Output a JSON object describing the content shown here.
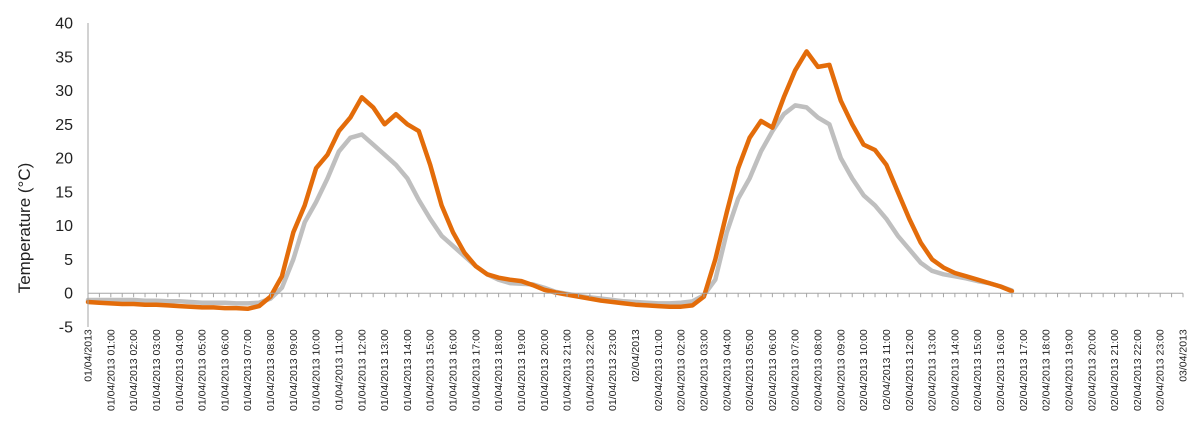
{
  "chart_data": {
    "type": "line",
    "title": "",
    "xlabel": "",
    "ylabel": "Temperature (°C)",
    "ylim": [
      -5,
      40
    ],
    "yticks": [
      -5,
      0,
      5,
      10,
      15,
      20,
      25,
      30,
      35,
      40
    ],
    "grid": false,
    "legend": "none",
    "x_step_hours": 0.5,
    "x_tick_labels": [
      "01/04/2013",
      "01/04/2013 01:00",
      "01/04/2013 02:00",
      "01/04/2013 03:00",
      "01/04/2013 04:00",
      "01/04/2013 05:00",
      "01/04/2013 06:00",
      "01/04/2013 07:00",
      "01/04/2013 08:00",
      "01/04/2013 09:00",
      "01/04/2013 10:00",
      "01/04/2013 11:00",
      "01/04/2013 12:00",
      "01/04/2013 13:00",
      "01/04/2013 14:00",
      "01/04/2013 15:00",
      "01/04/2013 16:00",
      "01/04/2013 17:00",
      "01/04/2013 18:00",
      "01/04/2013 19:00",
      "01/04/2013 20:00",
      "01/04/2013 21:00",
      "01/04/2013 22:00",
      "01/04/2013 23:00",
      "02/04/2013",
      "02/04/2013 01:00",
      "02/04/2013 02:00",
      "02/04/2013 03:00",
      "02/04/2013 04:00",
      "02/04/2013 05:00",
      "02/04/2013 06:00",
      "02/04/2013 07:00",
      "02/04/2013 08:00",
      "02/04/2013 09:00",
      "02/04/2013 10:00",
      "02/04/2013 11:00",
      "02/04/2013 12:00",
      "02/04/2013 13:00",
      "02/04/2013 14:00",
      "02/04/2013 15:00",
      "02/04/2013 16:00",
      "02/04/2013 17:00",
      "02/04/2013 18:00",
      "02/04/2013 19:00",
      "02/04/2013 20:00",
      "02/04/2013 21:00",
      "02/04/2013 22:00",
      "02/04/2013 23:00",
      "03/04/2013"
    ],
    "series": [
      {
        "color": "#E36C0A",
        "values": [
          -1.3,
          -1.4,
          -1.5,
          -1.6,
          -1.6,
          -1.7,
          -1.7,
          -1.8,
          -1.9,
          -2.0,
          -2.1,
          -2.1,
          -2.2,
          -2.2,
          -2.3,
          -1.9,
          -0.5,
          2.5,
          9.0,
          13.0,
          18.5,
          20.5,
          24.0,
          26.0,
          29.0,
          27.5,
          25.0,
          26.5,
          25.0,
          24.0,
          19.0,
          13.0,
          9.0,
          6.0,
          4.0,
          2.8,
          2.3,
          2.0,
          1.8,
          1.2,
          0.5,
          0.1,
          -0.2,
          -0.5,
          -0.8,
          -1.1,
          -1.3,
          -1.5,
          -1.7,
          -1.8,
          -1.9,
          -2.0,
          -2.0,
          -1.8,
          -0.5,
          5.0,
          12.0,
          18.5,
          23.0,
          25.5,
          24.5,
          29.0,
          33.0,
          35.8,
          33.5,
          33.8,
          28.5,
          25.0,
          22.0,
          21.2,
          19.0,
          15.0,
          11.0,
          7.5,
          5.0,
          3.8,
          3.0,
          2.5,
          2.0,
          1.5,
          1.0,
          0.3
        ]
      },
      {
        "color": "#BFBFBF",
        "values": [
          -1.0,
          -1.0,
          -1.0,
          -1.0,
          -1.0,
          -1.1,
          -1.1,
          -1.2,
          -1.2,
          -1.3,
          -1.4,
          -1.4,
          -1.4,
          -1.5,
          -1.5,
          -1.4,
          -0.8,
          0.8,
          5.0,
          10.5,
          13.5,
          17.0,
          21.0,
          23.0,
          23.5,
          22.0,
          20.5,
          19.0,
          17.0,
          13.8,
          11.0,
          8.5,
          7.0,
          5.5,
          4.0,
          2.8,
          2.0,
          1.5,
          1.4,
          1.3,
          0.8,
          0.2,
          -0.1,
          -0.4,
          -0.6,
          -0.8,
          -1.0,
          -1.2,
          -1.3,
          -1.4,
          -1.5,
          -1.5,
          -1.4,
          -1.2,
          -0.3,
          2.0,
          9.0,
          14.0,
          17.0,
          21.0,
          24.0,
          26.5,
          27.8,
          27.5,
          26.0,
          25.0,
          20.0,
          17.0,
          14.5,
          13.0,
          11.0,
          8.5,
          6.5,
          4.5,
          3.3,
          2.8,
          2.5,
          2.2,
          1.8,
          1.5,
          1.0,
          0.4
        ]
      }
    ]
  }
}
